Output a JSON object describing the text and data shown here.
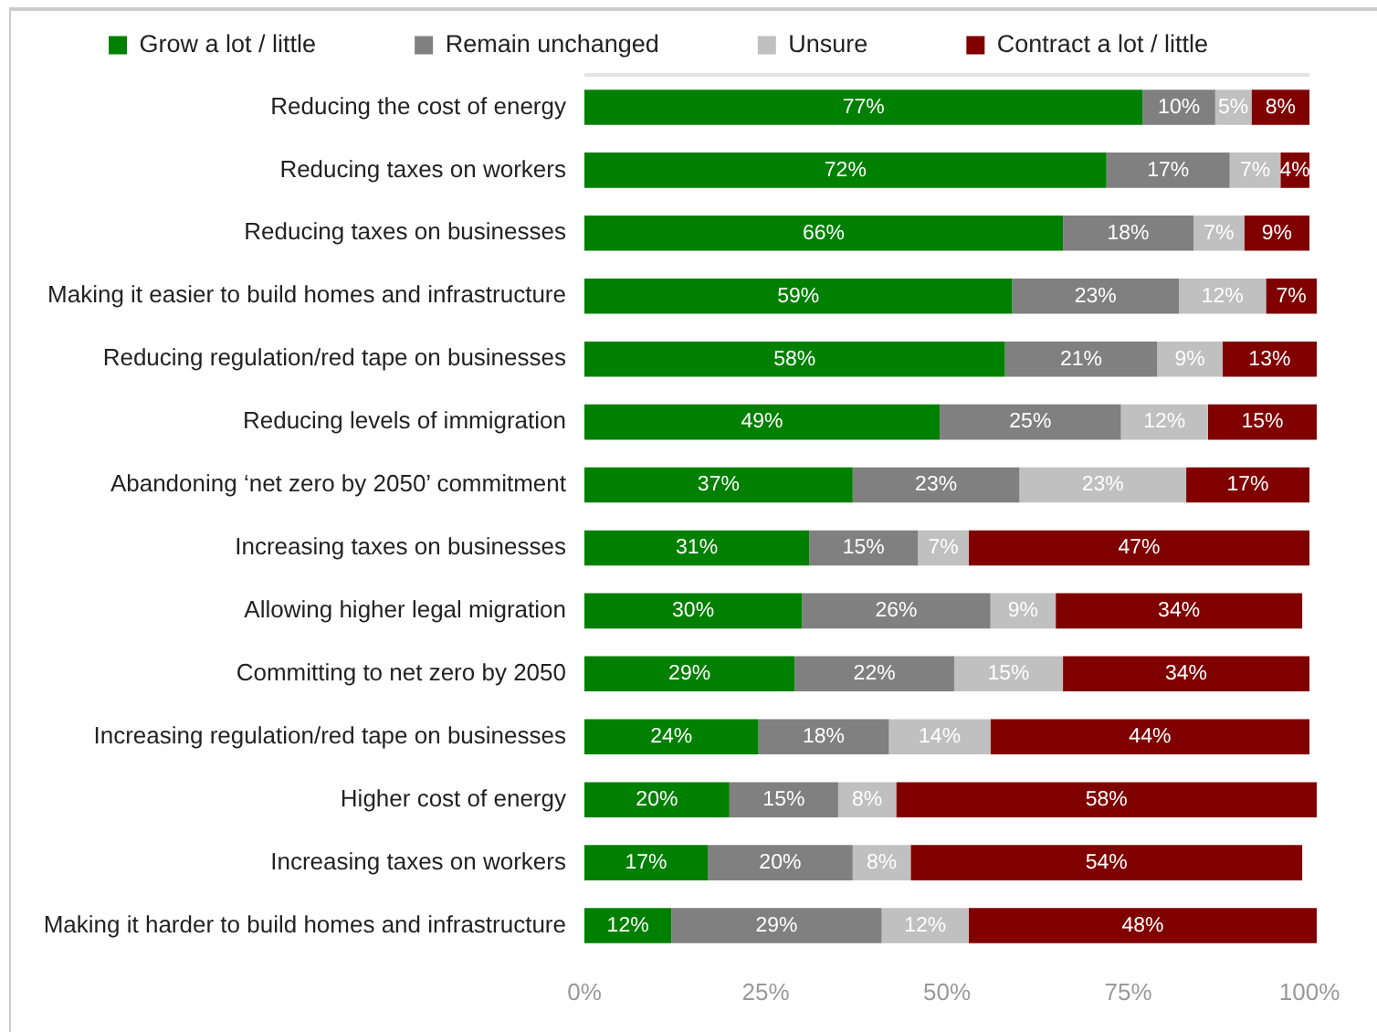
{
  "chart_data": {
    "type": "bar",
    "orientation": "horizontal",
    "stacked": true,
    "categories": [
      "Reducing the cost of energy",
      "Reducing taxes on workers",
      "Reducing taxes on businesses",
      "Making it easier to build homes and infrastructure",
      "Reducing regulation/red tape on businesses",
      "Reducing levels of immigration",
      "Abandoning ‘net zero by 2050’ commitment",
      "Increasing taxes on businesses",
      "Allowing higher legal migration",
      "Committing to net zero by 2050",
      "Increasing regulation/red tape on businesses",
      "Higher cost of energy",
      "Increasing taxes on workers",
      "Making it harder to build homes and infrastructure"
    ],
    "series": [
      {
        "name": "Grow a lot / little",
        "color": "#008000",
        "values": [
          77,
          72,
          66,
          59,
          58,
          49,
          37,
          31,
          30,
          29,
          24,
          20,
          17,
          12
        ],
        "value_labels": [
          "77%",
          "72%",
          "66%",
          "59%",
          "58%",
          "49%",
          "37%",
          "31%",
          "30%",
          "29%",
          "24%",
          "20%",
          "17%",
          "12%"
        ]
      },
      {
        "name": "Remain unchanged",
        "color": "#808080",
        "values": [
          10,
          17,
          18,
          23,
          21,
          25,
          23,
          15,
          26,
          22,
          18,
          15,
          20,
          29
        ],
        "value_labels": [
          "10%",
          "17%",
          "18%",
          "23%",
          "21%",
          "25%",
          "23%",
          "15%",
          "26%",
          "22%",
          "18%",
          "15%",
          "20%",
          "29%"
        ]
      },
      {
        "name": "Unsure",
        "color": "#c0c0c0",
        "values": [
          5,
          7,
          7,
          12,
          9,
          12,
          23,
          7,
          9,
          15,
          14,
          8,
          8,
          12
        ],
        "value_labels": [
          "5%",
          "7%",
          "7%",
          "12%",
          "9%",
          "12%",
          "23%",
          "7%",
          "9%",
          "15%",
          "14%",
          "8%",
          "8%",
          "12%"
        ]
      },
      {
        "name": "Contract a lot / little",
        "color": "#800000",
        "values": [
          8,
          4,
          9,
          7,
          13,
          15,
          17,
          47,
          34,
          34,
          44,
          58,
          54,
          48
        ],
        "value_labels": [
          "8%",
          "4%",
          "9%",
          "7%",
          "13%",
          "15%",
          "17%",
          "47%",
          "34%",
          "34%",
          "44%",
          "58%",
          "54%",
          "48%"
        ]
      }
    ],
    "xlim": [
      0,
      101
    ],
    "xticks": [
      {
        "value": 0,
        "label": "0%"
      },
      {
        "value": 25,
        "label": "25%"
      },
      {
        "value": 50,
        "label": "50%"
      },
      {
        "value": 75,
        "label": "75%"
      },
      {
        "value": 100,
        "label": "100%"
      }
    ],
    "legend": "top"
  }
}
